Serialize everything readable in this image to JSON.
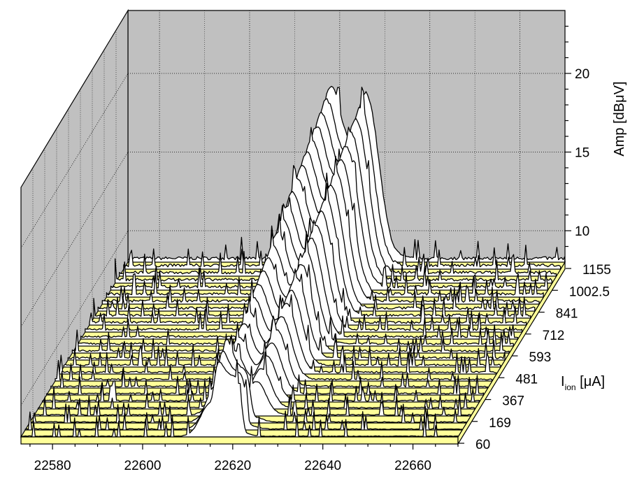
{
  "chart_data": {
    "type": "waterfall",
    "x_tick_labels": [
      "22580",
      "22600",
      "22620",
      "22640",
      "22660"
    ],
    "x_range": [
      22573,
      22670
    ],
    "z_tick_labels": [
      "10",
      "15",
      "20"
    ],
    "z_range": [
      8,
      23
    ],
    "ylabel": "Amp [dBμV]",
    "depth_label": "I",
    "depth_label_sub": "ion",
    "depth_label_unit": " [μA]",
    "depth_tick_labels": [
      "60",
      "169",
      "367",
      "481",
      "593",
      "712",
      "841",
      "1002.5",
      "1155"
    ],
    "series_count": 26,
    "peak_centers": [
      22618,
      22626
    ],
    "back_wall_color": "#c0c0c0",
    "floor_color": "#ffff99",
    "grid": true
  }
}
